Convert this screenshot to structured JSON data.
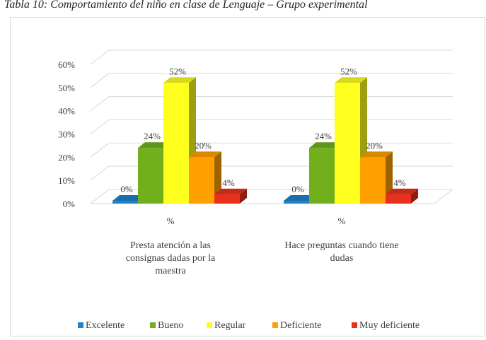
{
  "caption": "Tabla 10: Comportamiento del niño en clase de Lenguaje – Grupo experimental",
  "chart_data": {
    "type": "bar",
    "style": "3d-clustered-column",
    "title": "",
    "xlabel": "",
    "ylabel": "",
    "ylim": [
      0,
      60
    ],
    "yticks": [
      "0%",
      "10%",
      "20%",
      "30%",
      "40%",
      "50%",
      "60%"
    ],
    "grid": true,
    "legend_position": "bottom",
    "categories": [
      {
        "unit_label": "%",
        "label": "Presta atención a las consignas dadas por la maestra"
      },
      {
        "unit_label": "%",
        "label": "Hace preguntas cuando tiene dudas"
      }
    ],
    "series": [
      {
        "name": "Excelente",
        "color": "#1f83c8",
        "values": [
          0,
          0
        ],
        "labels": [
          "0%",
          "0%"
        ]
      },
      {
        "name": "Bueno",
        "color": "#71b01c",
        "values": [
          24,
          24
        ],
        "labels": [
          "24%",
          "24%"
        ]
      },
      {
        "name": "Regular",
        "color": "#ffff1e",
        "values": [
          52,
          52
        ],
        "labels": [
          "52%",
          "52%"
        ]
      },
      {
        "name": "Deficiente",
        "color": "#ffa000",
        "values": [
          20,
          20
        ],
        "labels": [
          "20%",
          "20%"
        ]
      },
      {
        "name": "Muy deficiente",
        "color": "#e8311a",
        "values": [
          4,
          4
        ],
        "labels": [
          "4%",
          "4%"
        ]
      }
    ]
  }
}
